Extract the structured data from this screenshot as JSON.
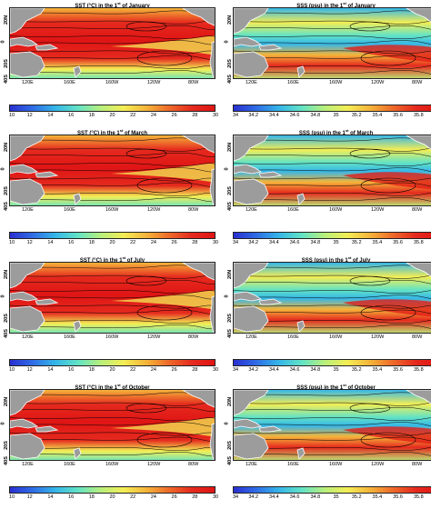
{
  "panels": [
    {
      "col": "left",
      "row": 0,
      "title_pre": "SST (°C) in the 1",
      "title_sup": "st",
      "title_post": " of January"
    },
    {
      "col": "right",
      "row": 0,
      "title_pre": "SSS (psu) in the 1",
      "title_sup": "st",
      "title_post": " of January"
    },
    {
      "col": "left",
      "row": 1,
      "title_pre": "SST (°C) in the 1",
      "title_sup": "st",
      "title_post": " of March"
    },
    {
      "col": "right",
      "row": 1,
      "title_pre": "SSS (psu) in the 1",
      "title_sup": "st",
      "title_post": " of March"
    },
    {
      "col": "left",
      "row": 2,
      "title_pre": "SST (°C) in the 1",
      "title_sup": "st",
      "title_post": " of July"
    },
    {
      "col": "right",
      "row": 2,
      "title_pre": "SSS (psu) in the 1",
      "title_sup": "st",
      "title_post": " of July"
    },
    {
      "col": "left",
      "row": 3,
      "title_pre": "SST (°C) in the 1",
      "title_sup": "st",
      "title_post": " of October"
    },
    {
      "col": "right",
      "row": 3,
      "title_pre": "SSS (psu) in the 1",
      "title_sup": "st",
      "title_post": " of October"
    }
  ],
  "lat_labels": [
    "20N",
    "0",
    "20S",
    "40S"
  ],
  "lon_labels": [
    "120E",
    "160E",
    "160W",
    "120W",
    "80W"
  ],
  "sst_colorbar_ticks": [
    "10",
    "12",
    "14",
    "16",
    "18",
    "20",
    "22",
    "24",
    "26",
    "28",
    "30"
  ],
  "sss_colorbar_ticks": [
    "34",
    "34.2",
    "34.4",
    "34.6",
    "34.8",
    "35",
    "35.2",
    "35.4",
    "35.6",
    "35.8"
  ],
  "colors": {
    "colormap": [
      "#2a2fd0",
      "#2f6de6",
      "#35b6e8",
      "#63e3c5",
      "#b8ef7c",
      "#f3ee55",
      "#f5b43a",
      "#ee6a2a",
      "#e52a1e",
      "#e01515"
    ],
    "land": "#9c9c9c",
    "contour": "#000000"
  },
  "icons": {
    "map_land": "land-mass-shape"
  }
}
